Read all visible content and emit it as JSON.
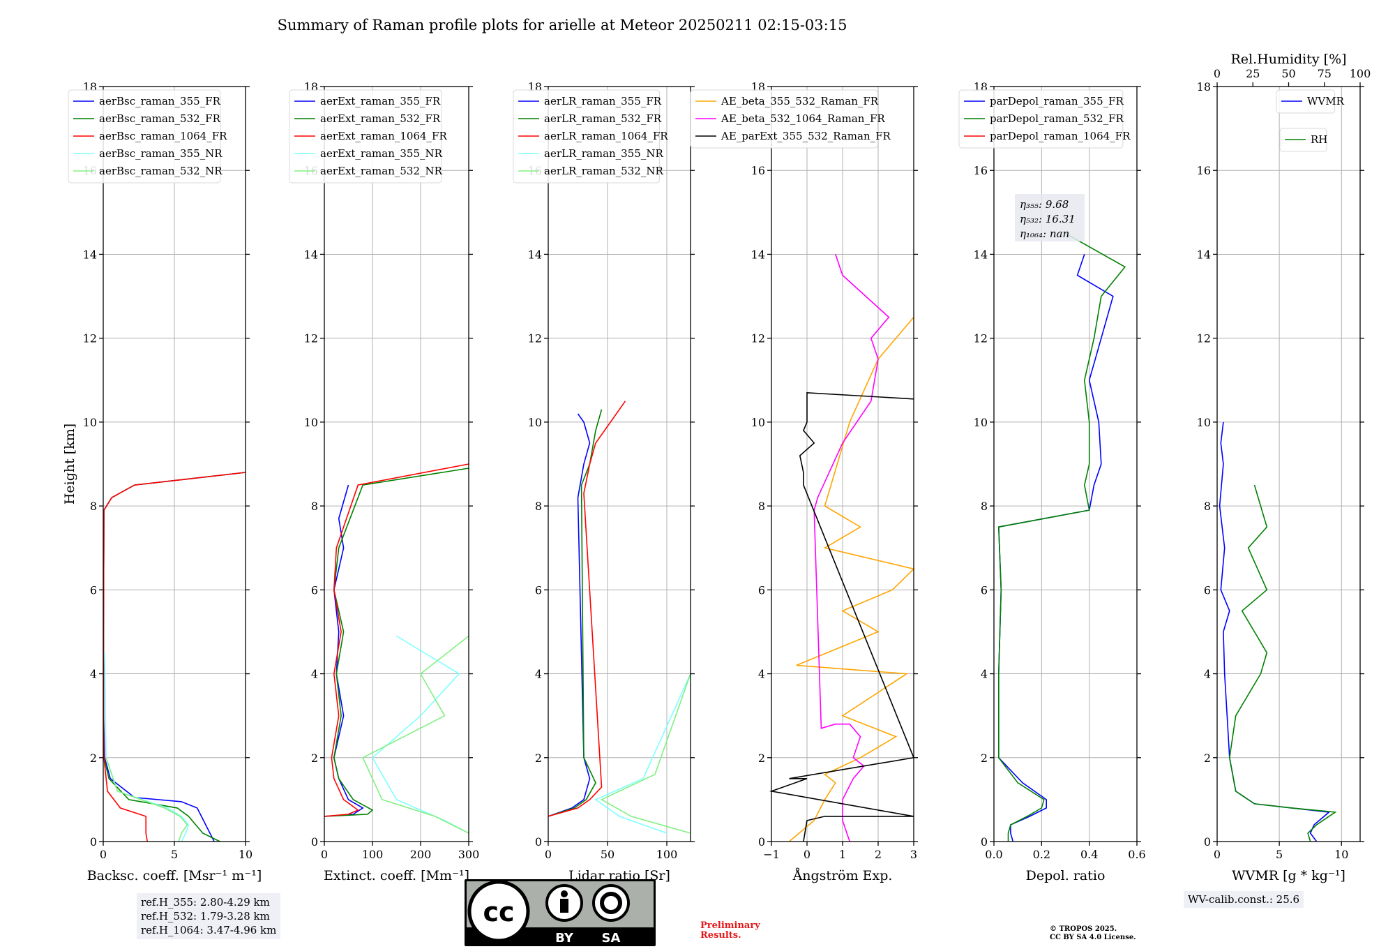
{
  "title": "Summary of Raman profile plots for arielle at Meteor 20250211 02:15-03:15",
  "colors": {
    "blue": "#0000ff",
    "green": "#008000",
    "red": "#ff0000",
    "cyan": "#7fffff",
    "lightgreen": "#80f080",
    "orange": "#ffa500",
    "magenta": "#ff00ff",
    "black": "#000000"
  },
  "panels": [
    {
      "id": "bsc",
      "xlabel": "Backsc. coeff. [Msr⁻¹ m⁻¹]",
      "ylabel": "Height [km]",
      "xlim": [
        0,
        10
      ],
      "xticks": [
        "0",
        "5",
        "10"
      ],
      "legend": [
        "aerBsc_raman_355_FR",
        "aerBsc_raman_532_FR",
        "aerBsc_raman_1064_FR",
        "aerBsc_raman_355_NR",
        "aerBsc_raman_532_NR"
      ],
      "legend_colors": [
        "blue",
        "green",
        "red",
        "cyan",
        "lightgreen"
      ]
    },
    {
      "id": "ext",
      "xlabel": "Extinct. coeff. [Mm⁻¹]",
      "xlim": [
        0,
        300
      ],
      "xticks": [
        "0",
        "100",
        "200",
        "300"
      ],
      "legend": [
        "aerExt_raman_355_FR",
        "aerExt_raman_532_FR",
        "aerExt_raman_1064_FR",
        "aerExt_raman_355_NR",
        "aerExt_raman_532_NR"
      ],
      "legend_colors": [
        "blue",
        "green",
        "red",
        "cyan",
        "lightgreen"
      ]
    },
    {
      "id": "lr",
      "xlabel": "Lidar ratio [Sr]",
      "xlim": [
        0,
        120
      ],
      "xticks": [
        "0",
        "50",
        "100"
      ],
      "legend": [
        "aerLR_raman_355_FR",
        "aerLR_raman_532_FR",
        "aerLR_raman_1064_FR",
        "aerLR_raman_355_NR",
        "aerLR_raman_532_NR"
      ],
      "legend_colors": [
        "blue",
        "green",
        "red",
        "cyan",
        "lightgreen"
      ]
    },
    {
      "id": "ae",
      "xlabel": "Ångström Exp.",
      "xlim": [
        -1,
        3
      ],
      "xticks": [
        "−1",
        "0",
        "1",
        "2",
        "3"
      ],
      "legend": [
        "AE_beta_355_532_Raman_FR",
        "AE_beta_532_1064_Raman_FR",
        "AE_parExt_355_532_Raman_FR"
      ],
      "legend_colors": [
        "orange",
        "magenta",
        "black"
      ]
    },
    {
      "id": "dep",
      "xlabel": "Depol. ratio",
      "xlim": [
        0,
        0.6
      ],
      "xticks": [
        "0.0",
        "0.2",
        "0.4",
        "0.6"
      ],
      "legend": [
        "parDepol_raman_355_FR",
        "parDepol_raman_532_FR",
        "parDepol_raman_1064_FR"
      ],
      "legend_colors": [
        "blue",
        "green",
        "red"
      ],
      "eta": [
        "η₃₅₅: 9.68",
        "η₅₃₂: 16.31",
        "η₁₀₆₄: nan"
      ]
    },
    {
      "id": "wv",
      "xlabel": "WVMR [g * kg⁻¹]",
      "xlim": [
        0,
        11.5
      ],
      "xticks": [
        "0",
        "5",
        "10"
      ],
      "top_label": "Rel.Humidity [%]",
      "top_xticks": [
        "0",
        "25",
        "50",
        "75",
        "100"
      ],
      "legend": [
        "WVMR"
      ],
      "legend_colors": [
        "blue"
      ],
      "legend2": [
        "RH"
      ],
      "legend2_colors": [
        "green"
      ]
    }
  ],
  "yticks": [
    "0",
    "2",
    "4",
    "6",
    "8",
    "10",
    "12",
    "14",
    "16",
    "18"
  ],
  "ref_heights": [
    "ref.H_355: 2.80-4.29 km",
    "ref.H_532: 1.79-3.28 km",
    "ref.H_1064: 3.47-4.96 km"
  ],
  "wv_calib": "WV-calib.const.: 25.6",
  "preliminary": [
    "Preliminary",
    "Results."
  ],
  "copyright": [
    "© TROPOS 2025.",
    "CC BY SA 4.0 License."
  ],
  "cc_badge": {
    "text": "cc",
    "by": "BY",
    "sa": "SA"
  },
  "chart_data": [
    {
      "type": "line",
      "panel": "bsc",
      "ylim": [
        0,
        18
      ],
      "xlim": [
        0,
        10
      ],
      "series": [
        {
          "name": "aerBsc_raman_355_FR",
          "color": "blue",
          "x": [
            7.8,
            7.5,
            7.2,
            6.9,
            6.6,
            5.5,
            2.2,
            0.5,
            0.1,
            0.03,
            0.02,
            0.05,
            0.6,
            2.2,
            10
          ],
          "y": [
            0,
            0.2,
            0.4,
            0.6,
            0.8,
            0.95,
            1.05,
            1.5,
            2,
            3,
            5,
            7.9,
            8.2,
            8.5,
            8.8
          ]
        },
        {
          "name": "aerBsc_raman_532_FR",
          "color": "green",
          "x": [
            8.2,
            7,
            6.5,
            6,
            5.2,
            1.8,
            0.4,
            0.05,
            0.02,
            0.02,
            0.05,
            0.6,
            2.2,
            10
          ],
          "y": [
            0,
            0.2,
            0.4,
            0.6,
            0.8,
            1,
            1.5,
            2,
            3,
            5,
            7.9,
            8.2,
            8.5,
            8.8
          ]
        },
        {
          "name": "aerBsc_raman_1064_FR",
          "color": "red",
          "x": [
            3.1,
            3,
            3,
            3,
            1.2,
            0.3,
            0.05,
            0.02,
            0.02,
            0.05,
            0.6,
            2.2,
            10
          ],
          "y": [
            0,
            0.2,
            0.4,
            0.6,
            0.8,
            1.2,
            2,
            3,
            5,
            7.9,
            8.2,
            8.5,
            8.8
          ]
        },
        {
          "name": "aerBsc_raman_355_NR",
          "color": "cyan",
          "x": [
            5.5,
            5.8,
            6,
            5.5,
            4.5,
            1,
            0.2,
            0.1
          ],
          "y": [
            0,
            0.2,
            0.4,
            0.6,
            0.8,
            1.2,
            2,
            4.5
          ]
        },
        {
          "name": "aerBsc_raman_532_NR",
          "color": "lightgreen",
          "x": [
            5.3,
            5.5,
            5.9,
            5.4,
            4.3,
            1,
            0.2
          ],
          "y": [
            0,
            0.2,
            0.4,
            0.6,
            0.8,
            1.2,
            2
          ]
        }
      ]
    },
    {
      "type": "line",
      "panel": "ext",
      "ylim": [
        0,
        18
      ],
      "xlim": [
        0,
        300
      ],
      "series": [
        {
          "name": "aerExt_raman_355_FR",
          "color": "blue",
          "x": [
            0,
            60,
            80,
            50,
            30,
            20,
            40,
            25,
            30,
            20,
            40,
            30,
            50
          ],
          "y": [
            0.6,
            0.65,
            0.8,
            1,
            1.5,
            2,
            3,
            4,
            5,
            6,
            7,
            7.7,
            8.5
          ]
        },
        {
          "name": "aerExt_raman_532_FR",
          "color": "green",
          "x": [
            0,
            90,
            100,
            60,
            30,
            20,
            35,
            25,
            40,
            20,
            30,
            80,
            300
          ],
          "y": [
            0.6,
            0.65,
            0.75,
            1,
            1.5,
            2,
            3,
            4,
            5,
            6,
            7,
            8.5,
            8.9
          ]
        },
        {
          "name": "aerExt_raman_1064_FR",
          "color": "red",
          "x": [
            0,
            50,
            70,
            40,
            20,
            15,
            30,
            20,
            35,
            20,
            25,
            70,
            300
          ],
          "y": [
            0.6,
            0.65,
            0.75,
            1,
            1.5,
            2,
            3,
            4,
            5,
            6,
            7,
            8.5,
            9
          ]
        },
        {
          "name": "aerExt_raman_355_NR",
          "color": "cyan",
          "x": [
            300,
            250,
            150,
            100,
            200,
            280,
            150
          ],
          "y": [
            0.2,
            0.5,
            1,
            2,
            3,
            4,
            4.9
          ]
        },
        {
          "name": "aerExt_raman_532_NR",
          "color": "lightgreen",
          "x": [
            300,
            230,
            120,
            80,
            250,
            200,
            300
          ],
          "y": [
            0.2,
            0.6,
            1,
            2,
            3,
            4,
            4.9
          ]
        }
      ]
    },
    {
      "type": "line",
      "panel": "lr",
      "ylim": [
        0,
        18
      ],
      "xlim": [
        0,
        120
      ],
      "series": [
        {
          "name": "aerLR_raman_355_FR",
          "color": "blue",
          "x": [
            0,
            20,
            30,
            35,
            30,
            25,
            30,
            35,
            30,
            25
          ],
          "y": [
            0.6,
            0.8,
            1,
            1.5,
            2,
            8.2,
            9,
            9.5,
            10,
            10.2
          ]
        },
        {
          "name": "aerLR_raman_532_FR",
          "color": "green",
          "x": [
            0,
            22,
            32,
            40,
            30,
            28,
            35,
            40,
            45
          ],
          "y": [
            0.6,
            0.8,
            1,
            1.4,
            2,
            8.5,
            9,
            9.8,
            10.3
          ]
        },
        {
          "name": "aerLR_raman_1064_FR",
          "color": "red",
          "x": [
            0,
            25,
            35,
            45,
            30,
            35,
            40,
            65
          ],
          "y": [
            0.6,
            0.8,
            1,
            1.3,
            8.3,
            9,
            9.5,
            10.5
          ]
        },
        {
          "name": "aerLR_raman_355_NR",
          "color": "cyan",
          "x": [
            100,
            60,
            40,
            80,
            120
          ],
          "y": [
            0.2,
            0.6,
            1,
            1.5,
            4
          ]
        },
        {
          "name": "aerLR_raman_532_NR",
          "color": "lightgreen",
          "x": [
            120,
            70,
            45,
            90,
            120
          ],
          "y": [
            0.2,
            0.6,
            1,
            1.6,
            4
          ]
        }
      ]
    },
    {
      "type": "line",
      "panel": "ae",
      "ylim": [
        0,
        18
      ],
      "xlim": [
        -1,
        3
      ],
      "series": [
        {
          "name": "AE_beta_355_532_Raman_FR",
          "color": "orange",
          "x": [
            -0.5,
            0.2,
            0.5,
            0.8,
            0.5,
            1.5,
            2.5,
            1,
            2.8,
            -0.3,
            2,
            1,
            2.4,
            3,
            0.5,
            1.5,
            0.5,
            1.2,
            2,
            3
          ],
          "y": [
            0,
            0.5,
            1,
            1.4,
            1.6,
            2,
            2.5,
            3,
            4,
            4.2,
            5,
            5.5,
            6,
            6.5,
            7,
            7.5,
            8,
            10,
            11.5,
            12.5
          ]
        },
        {
          "name": "AE_beta_532_1064_Raman_FR",
          "color": "magenta",
          "x": [
            1.2,
            1,
            1,
            1.3,
            1.6,
            1.3,
            1.5,
            1.2,
            0.8,
            0.4,
            0.2,
            0.3,
            1,
            1.8,
            2,
            1.8,
            2.3,
            1,
            0.8
          ],
          "y": [
            0,
            0.5,
            1,
            1.5,
            1.8,
            2,
            2.5,
            2.8,
            2.8,
            2.7,
            7.9,
            8.2,
            9.5,
            10.5,
            11.5,
            12,
            12.5,
            13.5,
            14
          ]
        },
        {
          "name": "AE_parExt_355_532_Raman_FR",
          "color": "black",
          "x": [
            -0.1,
            0,
            0.5,
            3,
            -1,
            0,
            -0.5,
            3,
            -0.1,
            -0.1,
            -0.2,
            0.2,
            -0.1,
            0,
            0,
            3
          ],
          "y": [
            0,
            0.5,
            0.6,
            0.6,
            1.2,
            1.5,
            1.5,
            2,
            8.5,
            8.8,
            9.2,
            9.5,
            9.8,
            10,
            10.7,
            10.55
          ]
        }
      ]
    },
    {
      "type": "line",
      "panel": "dep",
      "ylim": [
        0,
        18
      ],
      "xlim": [
        0,
        0.6
      ],
      "series": [
        {
          "name": "parDepol_raman_355_FR",
          "color": "blue",
          "x": [
            0.08,
            0.07,
            0.07,
            0.15,
            0.22,
            0.22,
            0.12,
            0.02,
            0.02,
            0.03,
            0.02,
            0.4,
            0.42,
            0.45,
            0.44,
            0.4,
            0.45,
            0.5,
            0.35,
            0.38
          ],
          "y": [
            0,
            0.2,
            0.4,
            0.6,
            0.8,
            1,
            1.4,
            2,
            4,
            6,
            7.5,
            7.9,
            8.5,
            9,
            10,
            11,
            12,
            13,
            13.5,
            14
          ]
        },
        {
          "name": "parDepol_raman_532_FR",
          "color": "green",
          "x": [
            0.06,
            0.06,
            0.07,
            0.14,
            0.2,
            0.21,
            0.1,
            0.02,
            0.02,
            0.03,
            0.02,
            0.4,
            0.38,
            0.4,
            0.4,
            0.38,
            0.42,
            0.45,
            0.55,
            0.3
          ],
          "y": [
            0,
            0.2,
            0.4,
            0.6,
            0.8,
            1,
            1.4,
            2,
            4,
            6,
            7.5,
            7.9,
            8.5,
            9,
            10,
            11,
            12,
            13,
            13.7,
            14.5
          ]
        },
        {
          "name": "parDepol_raman_1064_FR",
          "color": "red",
          "x": [],
          "y": []
        }
      ]
    },
    {
      "type": "line",
      "panel": "wv",
      "ylim": [
        0,
        18
      ],
      "xlim": [
        0,
        11.5
      ],
      "series": [
        {
          "name": "WVMR",
          "color": "blue",
          "x": [
            8,
            7.5,
            7.8,
            9,
            6,
            3,
            1.5,
            1,
            0.8,
            0.6,
            0.5,
            1,
            0.3,
            0.6,
            0.2,
            0.5,
            0.3,
            0.5
          ],
          "y": [
            0,
            0.2,
            0.4,
            0.7,
            0.8,
            0.9,
            1.2,
            2,
            3,
            4,
            5,
            5.5,
            6,
            7,
            8,
            9,
            9.5,
            10
          ]
        },
        {
          "name": "RH",
          "color": "green",
          "x": [
            7.5,
            7.3,
            8,
            9.5,
            6,
            3,
            1.5,
            1,
            1.5,
            2.5,
            3.5,
            4,
            3,
            2,
            4,
            2.5,
            4,
            3
          ],
          "y": [
            0,
            0.2,
            0.4,
            0.7,
            0.8,
            0.9,
            1.2,
            2,
            3,
            3.5,
            4,
            4.5,
            5,
            5.5,
            6,
            7,
            7.5,
            8.5
          ]
        }
      ]
    }
  ]
}
